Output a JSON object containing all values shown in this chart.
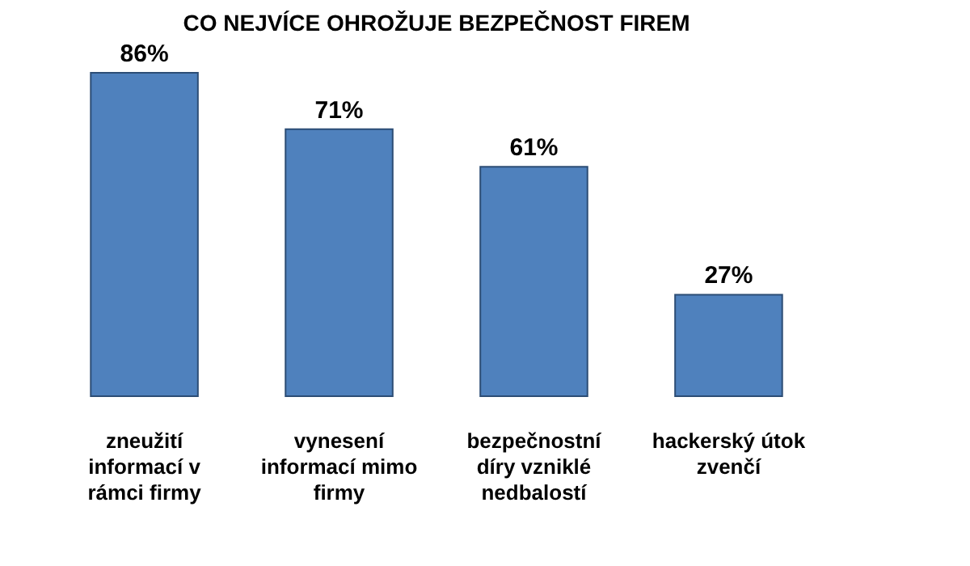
{
  "chart_data": {
    "type": "bar",
    "title": "CO NEJVÍCE OHROŽUJE BEZPEČNOST FIREM",
    "categories": [
      "zneužití informací v rámci firmy",
      "vynesení informací mimo firmy",
      "bezpečnostní díry vzniklé nedbalostí",
      "hackerský útok zvenčí"
    ],
    "values": [
      86,
      71,
      61,
      27
    ],
    "color": "#4f81bd",
    "data_labels": true,
    "value_labels": [
      "86%",
      "71%",
      "61%",
      "27%"
    ]
  }
}
